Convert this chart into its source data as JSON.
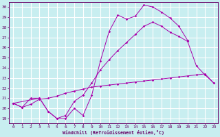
{
  "background_color": "#c8eef0",
  "grid_color": "#ffffff",
  "line_color": "#aa00aa",
  "spine_color": "#660066",
  "xlabel": "Windchill (Refroidissement éolien,°C)",
  "xlim": [
    -0.5,
    23.5
  ],
  "ylim": [
    18.5,
    30.5
  ],
  "xticks": [
    0,
    1,
    2,
    3,
    4,
    5,
    6,
    7,
    8,
    9,
    10,
    11,
    12,
    13,
    14,
    15,
    16,
    17,
    18,
    19,
    20,
    21,
    22,
    23
  ],
  "yticks": [
    19,
    20,
    21,
    22,
    23,
    24,
    25,
    26,
    27,
    28,
    29,
    30
  ],
  "line1_x": [
    0,
    1,
    2,
    3,
    4,
    5,
    6,
    7,
    8,
    9,
    10,
    11,
    12,
    13,
    14,
    15,
    16,
    17,
    18,
    19,
    20
  ],
  "line1_y": [
    20.5,
    20.1,
    21.0,
    21.0,
    19.7,
    19.0,
    19.0,
    20.0,
    19.3,
    21.3,
    24.7,
    27.6,
    29.2,
    28.8,
    29.1,
    30.2,
    30.0,
    29.5,
    28.9,
    28.1,
    26.7
  ],
  "line2_x": [
    0,
    3,
    4,
    5,
    6,
    7,
    8,
    9,
    10,
    11,
    12,
    13,
    14,
    15,
    16,
    17,
    18,
    19,
    20,
    21,
    22,
    23
  ],
  "line2_y": [
    20.5,
    21.0,
    19.7,
    19.0,
    19.3,
    20.7,
    21.3,
    22.5,
    23.8,
    24.8,
    25.7,
    26.5,
    27.3,
    28.1,
    28.5,
    28.1,
    27.5,
    27.1,
    26.6,
    24.2,
    23.3,
    22.5
  ],
  "line3_x": [
    0,
    1,
    2,
    3,
    4,
    5,
    6,
    7,
    8,
    9,
    10,
    11,
    12,
    13,
    14,
    15,
    16,
    17,
    18,
    19,
    20,
    21,
    22,
    23
  ],
  "line3_y": [
    20.5,
    20.1,
    20.4,
    20.9,
    21.0,
    21.2,
    21.5,
    21.7,
    21.9,
    22.1,
    22.2,
    22.3,
    22.4,
    22.5,
    22.6,
    22.7,
    22.8,
    22.9,
    23.0,
    23.1,
    23.2,
    23.3,
    23.4,
    22.5
  ]
}
